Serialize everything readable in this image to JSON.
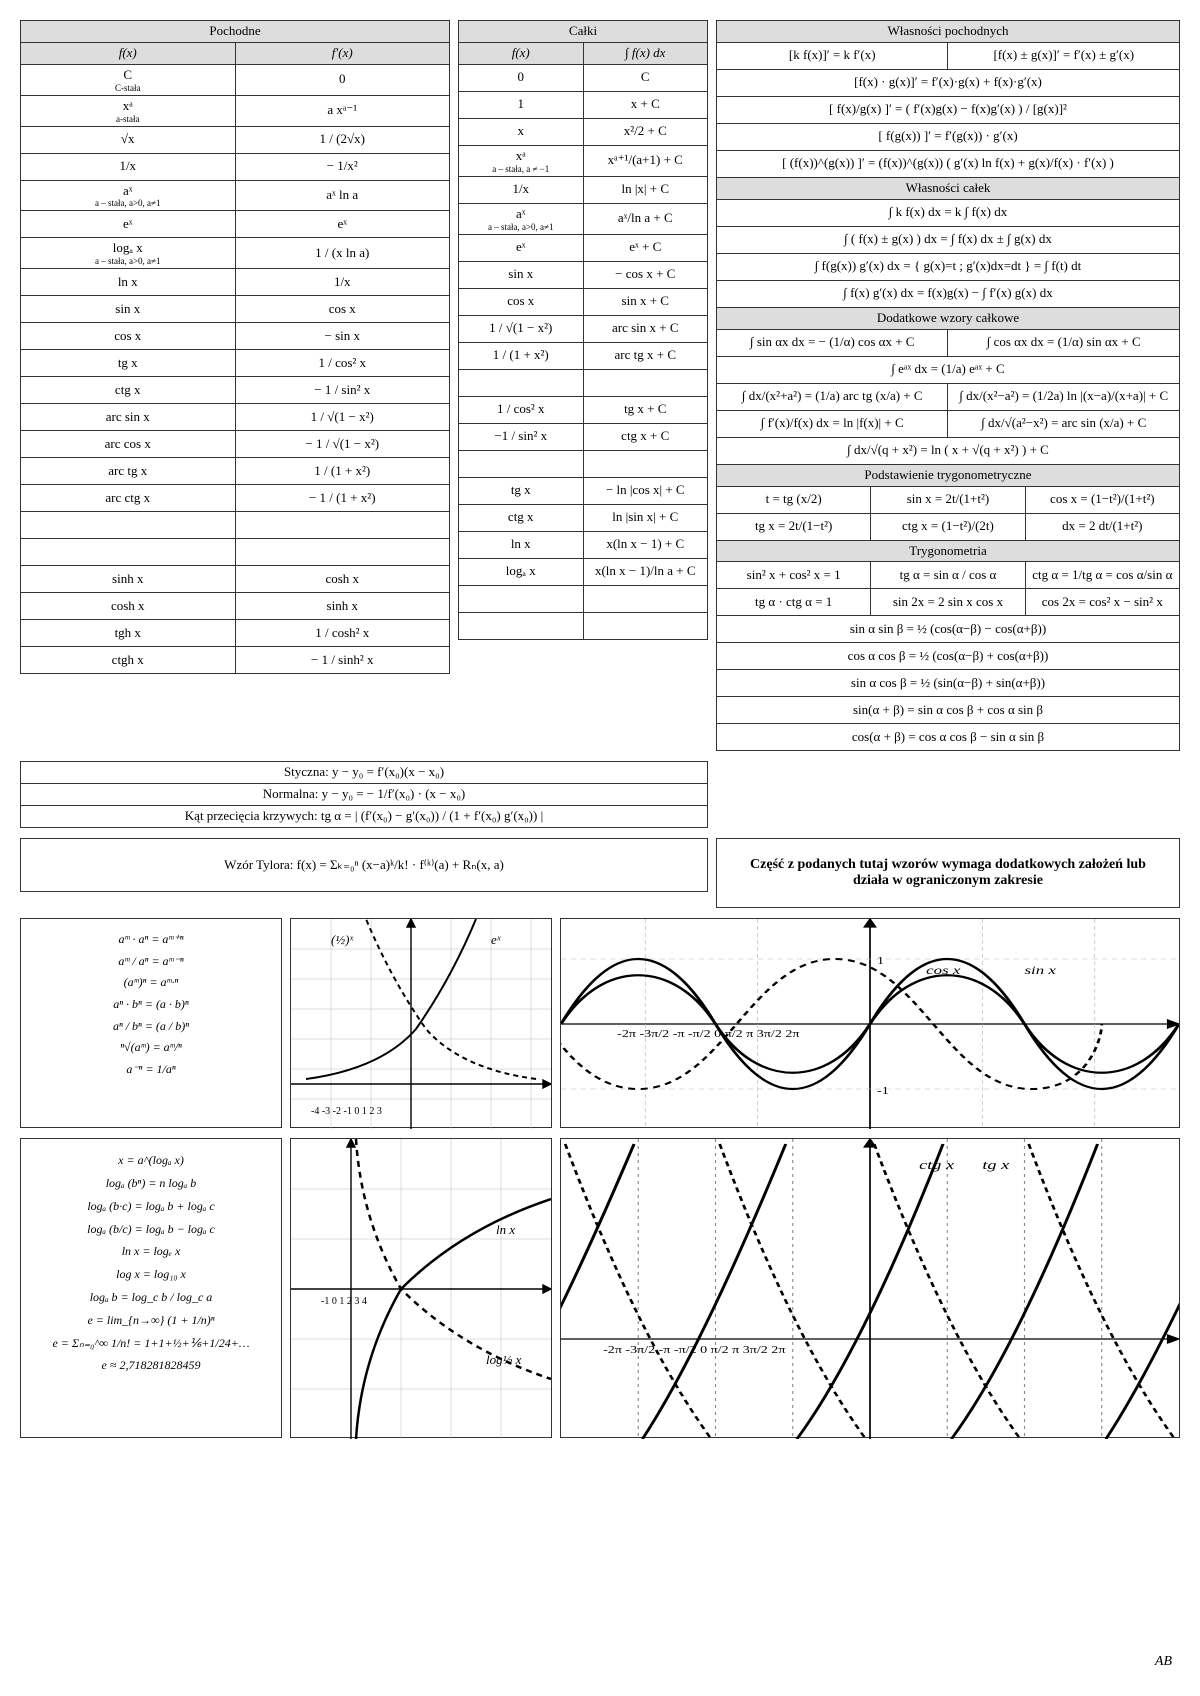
{
  "headers": {
    "deriv": "Pochodne",
    "int": "Całki",
    "dprop": "Własności pochodnych",
    "iprop": "Własności całek",
    "extra": "Dodatkowe wzory całkowe",
    "trigsub": "Podstawienie trygonometryczne",
    "trig": "Trygonometria",
    "fx": "f(x)",
    "fpx": "f′(x)",
    "ifx": "f(x)",
    "iint": "∫ f(x) dx"
  },
  "deriv": [
    {
      "f": "C",
      "sub": "C-stała",
      "p": "0"
    },
    {
      "f": "xᵃ",
      "sub": "a-stała",
      "p": "a xᵃ⁻¹"
    },
    {
      "f": "√x",
      "p": "1 / (2√x)"
    },
    {
      "f": "1/x",
      "p": "− 1/x²"
    },
    {
      "f": "aˣ",
      "sub": "a – stała, a>0, a≠1",
      "p": "aˣ ln a"
    },
    {
      "f": "eˣ",
      "p": "eˣ"
    },
    {
      "f": "logₐ x",
      "sub": "a – stała, a>0, a≠1",
      "p": "1 / (x ln a)"
    },
    {
      "f": "ln x",
      "p": "1/x"
    },
    {
      "f": "sin x",
      "p": "cos x"
    },
    {
      "f": "cos x",
      "p": "− sin x"
    },
    {
      "f": "tg x",
      "p": "1 / cos² x"
    },
    {
      "f": "ctg x",
      "p": "− 1 / sin² x"
    },
    {
      "f": "arc sin x",
      "p": "1 / √(1 − x²)"
    },
    {
      "f": "arc cos x",
      "p": "− 1 / √(1 − x²)"
    },
    {
      "f": "arc tg x",
      "p": "1 / (1 + x²)"
    },
    {
      "f": "arc ctg x",
      "p": "− 1 / (1 + x²)"
    },
    {
      "f": "",
      "p": ""
    },
    {
      "f": "",
      "p": ""
    },
    {
      "f": "sinh x",
      "p": "cosh x"
    },
    {
      "f": "cosh x",
      "p": "sinh x"
    },
    {
      "f": "tgh x",
      "p": "1 / cosh² x"
    },
    {
      "f": "ctgh x",
      "p": "− 1 / sinh² x"
    }
  ],
  "int": [
    {
      "f": "0",
      "r": "C"
    },
    {
      "f": "1",
      "r": "x + C"
    },
    {
      "f": "x",
      "r": "x²/2 + C"
    },
    {
      "f": "xᵃ",
      "sub": "a – stała, a ≠ −1",
      "r": "xᵃ⁺¹/(a+1) + C"
    },
    {
      "f": "1/x",
      "r": "ln |x| + C"
    },
    {
      "f": "aˣ",
      "sub": "a – stała, a>0, a≠1",
      "r": "aˣ/ln a + C"
    },
    {
      "f": "eˣ",
      "r": "eˣ + C"
    },
    {
      "f": "sin x",
      "r": "− cos x + C"
    },
    {
      "f": "cos x",
      "r": "sin x + C"
    },
    {
      "f": "1 / √(1 − x²)",
      "r": "arc sin x + C"
    },
    {
      "f": "1 / (1 + x²)",
      "r": "arc tg x + C"
    },
    {
      "f": "",
      "r": ""
    },
    {
      "f": "1 / cos² x",
      "r": "tg x + C"
    },
    {
      "f": "−1 / sin² x",
      "r": "ctg x + C"
    },
    {
      "f": "",
      "r": ""
    },
    {
      "f": "tg x",
      "r": "− ln |cos x| + C"
    },
    {
      "f": "ctg x",
      "r": "ln |sin x| + C"
    },
    {
      "f": "ln x",
      "r": "x(ln x − 1) + C"
    },
    {
      "f": "logₐ x",
      "r": "x(ln x − 1)/ln a + C"
    },
    {
      "f": "",
      "r": ""
    },
    {
      "f": "",
      "r": ""
    }
  ],
  "dprop": [
    "[k f(x)]′ = k f′(x)",
    "[f(x) ± g(x)]′ = f′(x) ± g′(x)",
    "[f(x) · g(x)]′ = f′(x)·g(x) + f(x)·g′(x)",
    "[ f(x)/g(x) ]′ = ( f′(x)g(x) − f(x)g′(x) ) / [g(x)]²",
    "[ f(g(x)) ]′ = f′(g(x)) · g′(x)",
    "[ (f(x))^(g(x)) ]′ = (f(x))^(g(x)) ( g′(x) ln f(x) + g(x)/f(x) · f′(x) )"
  ],
  "iprop": [
    "∫ k f(x) dx = k ∫ f(x) dx",
    "∫ ( f(x) ± g(x) ) dx = ∫ f(x) dx ± ∫ g(x) dx",
    "∫ f(g(x)) g′(x) dx = { g(x)=t ; g′(x)dx=dt } = ∫ f(t) dt",
    "∫ f(x) g′(x) dx = f(x)g(x) − ∫ f′(x) g(x) dx"
  ],
  "extra": [
    [
      "∫ sin αx dx = − (1/α) cos αx + C",
      "∫ cos αx dx = (1/α) sin αx + C"
    ],
    [
      "∫ eᵃˣ dx = (1/a) eᵃˣ + C"
    ],
    [
      "∫ dx/(x²+a²) = (1/a) arc tg (x/a) + C",
      "∫ dx/(x²−a²) = (1/2a) ln |(x−a)/(x+a)| + C"
    ],
    [
      "∫ f′(x)/f(x) dx = ln |f(x)| + C",
      "∫ dx/√(a²−x²) = arc sin (x/a) + C"
    ],
    [
      "∫ dx/√(q + x²) = ln ( x + √(q + x²) ) + C"
    ]
  ],
  "trigsub": {
    "r1": [
      "t = tg (x/2)",
      "sin x = 2t/(1+t²)",
      "cos x = (1−t²)/(1+t²)"
    ],
    "r2": [
      "tg x = 2t/(1−t²)",
      "ctg x = (1−t²)/(2t)",
      "dx = 2 dt/(1+t²)"
    ]
  },
  "trig": [
    [
      "sin² x + cos² x = 1",
      "tg α = sin α / cos α",
      "ctg α = 1/tg α = cos α/sin α"
    ],
    [
      "tg α · ctg α = 1",
      "sin 2x = 2 sin x cos x",
      "cos 2x = cos² x − sin² x"
    ],
    [
      "sin α sin β = ½ (cos(α−β) − cos(α+β))"
    ],
    [
      "cos α cos β = ½ (cos(α−β) + cos(α+β))"
    ],
    [
      "sin α cos β = ½ (sin(α−β) + sin(α+β))"
    ],
    [
      "sin(α + β) = sin α cos β + cos α sin β"
    ],
    [
      "cos(α + β) = cos α cos β − sin α sin β"
    ]
  ],
  "tangent": "Styczna:  y − y₀ = f′(x₀)(x − x₀)",
  "normal": "Normalna:  y − y₀ = − 1/f′(x₀) · (x − x₀)",
  "angle": "Kąt przecięcia krzywych:  tg α = | (f′(x₀) − g′(x₀)) / (1 + f′(x₀) g′(x₀)) |",
  "taylor": "Wzór Tylora:  f(x) = Σₖ₌₀ⁿ  (x−a)ᵏ/k! · f⁽ᵏ⁾(a) + Rₙ(x, a)",
  "warning": "Część z podanych tutaj wzorów wymaga dodatkowych założeń lub działa w ograniczonym zakresie",
  "exps": [
    "aᵐ · aⁿ  =  aᵐ⁺ⁿ",
    "aᵐ / aⁿ  =  aᵐ⁻ⁿ",
    "(aᵐ)ⁿ  =  aᵐ·ⁿ",
    "aⁿ · bⁿ  =  (a · b)ⁿ",
    "aⁿ / bⁿ  =  (a / b)ⁿ",
    "ⁿ√(aᵐ)  =  aᵐ/ⁿ",
    "a⁻ⁿ  =  1/aⁿ"
  ],
  "logs": [
    "x = a^(logₐ x)",
    "logₐ (bⁿ) = n logₐ b",
    "logₐ (b·c) = logₐ b + logₐ c",
    "logₐ (b/c) = logₐ b − logₐ c",
    "ln x = logₑ x",
    "log x = log₁₀ x",
    "logₐ b = log_c b / log_c a",
    "e = lim_{n→∞} (1 + 1/n)ⁿ",
    "e = Σₙ₌₀^∞ 1/n! = 1+1+½+⅙+1/24+…",
    "e ≈ 2,718281828459"
  ],
  "labels": {
    "ex": "eˣ",
    "lnx": "ln x",
    "logx": "log½ x",
    "halfx": "(½)ˣ",
    "sin": "sin x",
    "cos": "cos x",
    "tg": "tg x",
    "ctg": "ctg x"
  },
  "signature": "AB",
  "colors": {
    "border": "#333333",
    "header_bg": "#dddddd",
    "grid": "#bbbbbb",
    "axis": "#000000"
  }
}
